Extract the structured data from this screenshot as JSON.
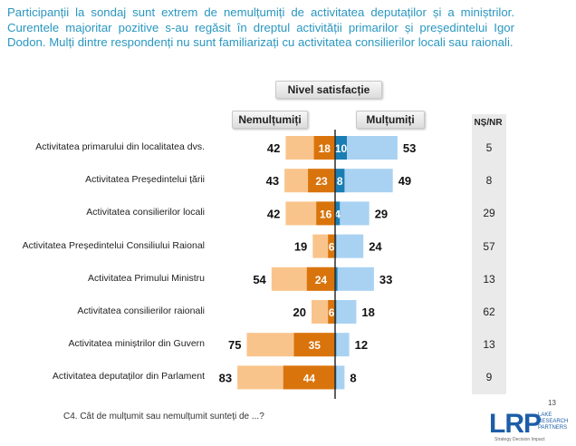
{
  "intro": "Participanții la sondaj sunt extrem de nemulțumiți de activitatea deputaților și a miniștrilor. Curentele majoritar pozitive s-au regăsit în dreptul activității primarilor și președintelui Igor Dodon. Mulți dintre respondenți nu sunt familiarizați cu activitatea consilierilor locali sau raionali.",
  "headers": {
    "satisfaction": "Nivel satisfacție",
    "dissatisfied": "Nemulțumiți",
    "satisfied": "Mulțumiți",
    "nsnr": "NȘ/NR"
  },
  "question": "C4. Cât de mulțumit sau nemulțumit sunteți de ...?",
  "page_number": "13",
  "logo": {
    "text": "LRP",
    "subtitle_line1": "LAKE",
    "subtitle_line2": "RESEARCH",
    "subtitle_line3": "PARTNERS",
    "tagline": "Strategy  Decision  Impact"
  },
  "colors": {
    "dissatisfied_total": "#f9c48b",
    "very_dissatisfied": "#d9740c",
    "satisfied_total": "#a9d2f2",
    "very_satisfied": "#1a7db3",
    "title_text": "#2a97c0"
  },
  "chart_data": {
    "type": "bar",
    "layout": "diverging-horizontal",
    "categories": [
      "Activitatea primarului din localitatea dvs.",
      "Activitatea Președintelui țării",
      "Activitatea consilierilor locali",
      "Activitatea Președintelui Consiliului Raional",
      "Activitatea Primului Ministru",
      "Activitatea consilierilor raionali",
      "Activitatea miniștrilor din Guvern",
      "Activitatea deputaților din Parlament"
    ],
    "series": [
      {
        "name": "Nemulțumiți",
        "values": [
          42,
          43,
          42,
          19,
          54,
          20,
          75,
          83
        ]
      },
      {
        "name": "",
        "values": [
          18,
          23,
          16,
          6,
          24,
          6,
          35,
          44
        ]
      },
      {
        "name": "Mulțumiți",
        "values": [
          53,
          49,
          29,
          24,
          33,
          18,
          12,
          8
        ]
      },
      {
        "name": "",
        "values": [
          10,
          8,
          4,
          1,
          2,
          1,
          1,
          1
        ]
      }
    ],
    "inner_labels_dissatisfied": [
      "18",
      "23",
      "16",
      "6",
      "24",
      "6",
      "35",
      "44"
    ],
    "inner_labels_satisfied": [
      "10",
      "8",
      "4",
      "",
      "",
      "",
      "",
      ""
    ],
    "nsnr": [
      "5",
      "8",
      "29",
      "57",
      "13",
      "62",
      "13",
      "9"
    ],
    "xlim": [
      -90,
      90
    ]
  }
}
